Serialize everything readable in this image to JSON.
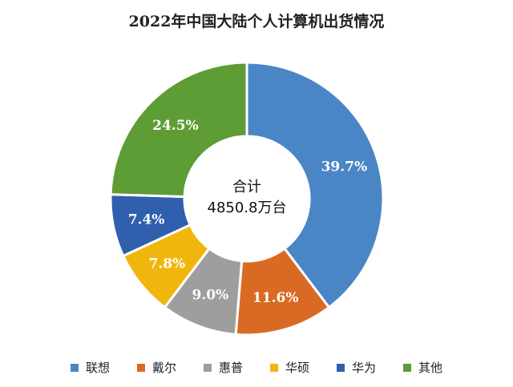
{
  "chart_data": {
    "type": "pie",
    "title": "2022年中国大陆个人计算机出货情况",
    "center_label": "合计",
    "center_value": "4850.8万台",
    "categories": [
      "联想",
      "戴尔",
      "惠普",
      "华硕",
      "华为",
      "其他"
    ],
    "values": [
      39.7,
      11.6,
      9.0,
      7.8,
      7.4,
      24.5
    ],
    "value_labels": [
      "39.7%",
      "11.6%",
      "9.0%",
      "7.8%",
      "7.4%",
      "24.5%"
    ],
    "colors": [
      "#4a86c6",
      "#d96a24",
      "#9e9e9e",
      "#f1b60e",
      "#2f5fad",
      "#5e9c35"
    ],
    "legend_position": "bottom"
  }
}
